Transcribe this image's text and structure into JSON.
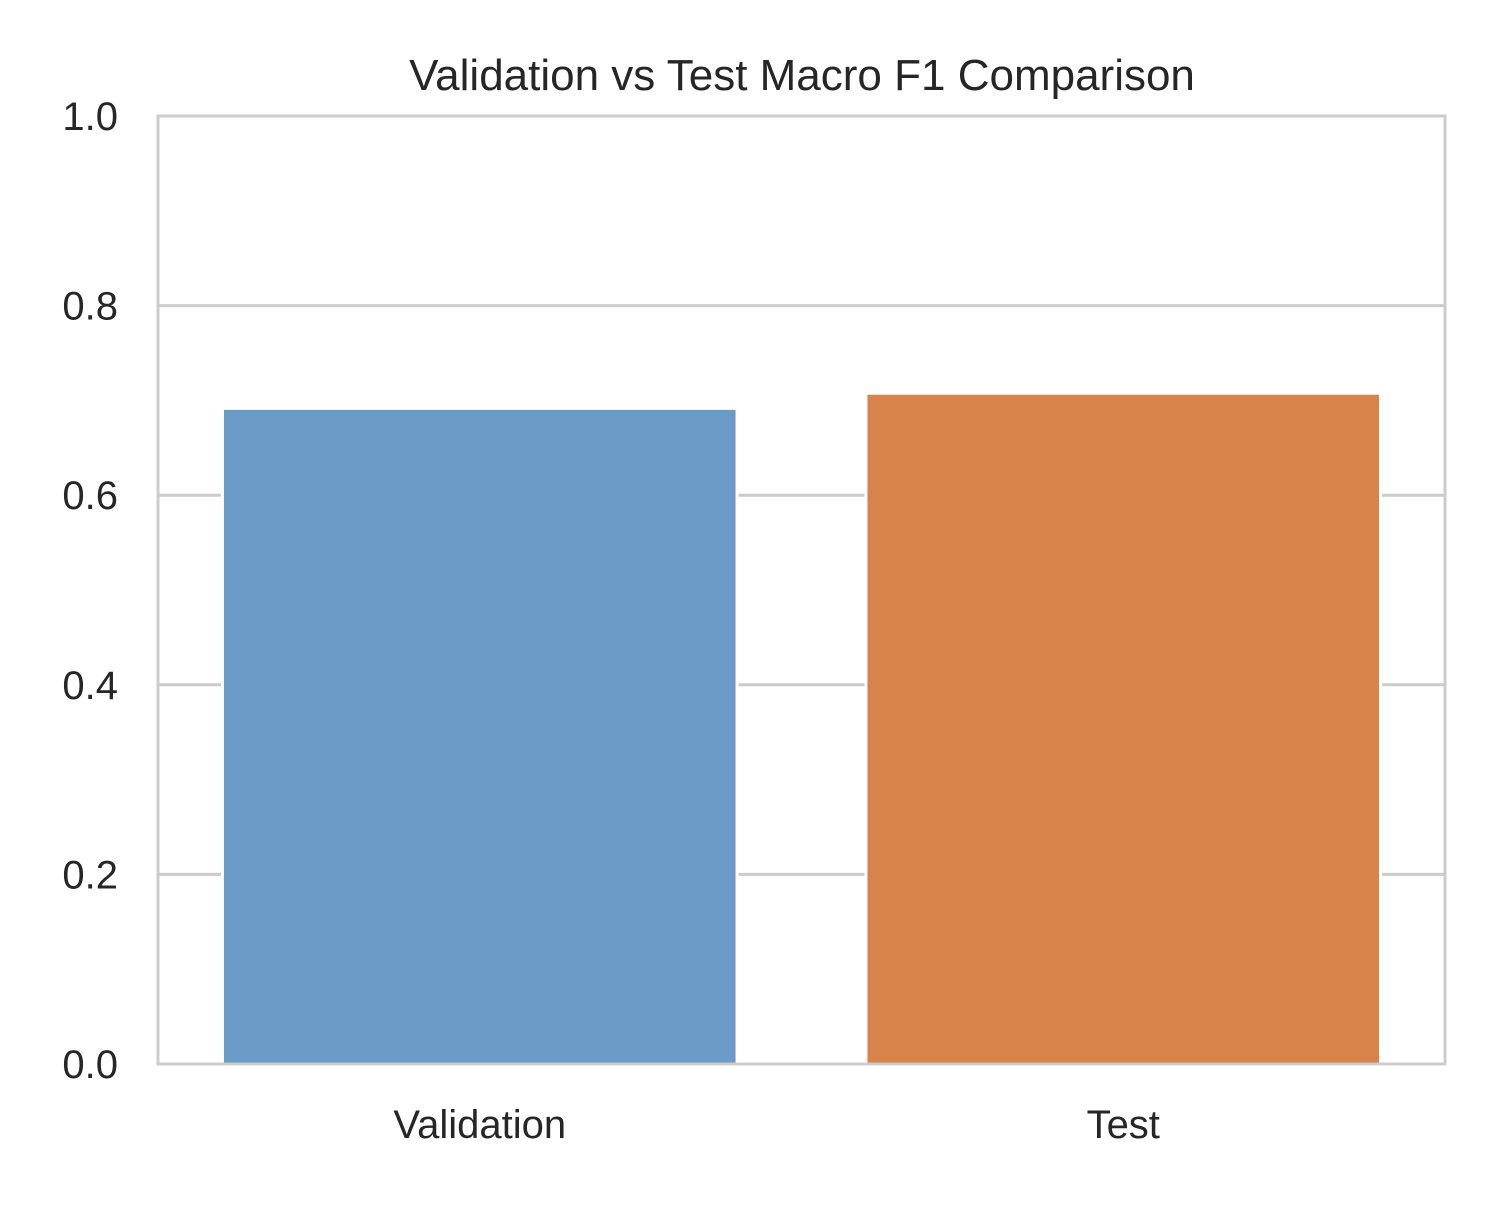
{
  "chart_data": {
    "type": "bar",
    "title": "Validation vs Test Macro F1 Comparison",
    "xlabel": "",
    "ylabel": "",
    "categories": [
      "Validation",
      "Test"
    ],
    "values": [
      0.69,
      0.706
    ],
    "ylim": [
      0,
      1.0
    ],
    "yticks": [
      "0.0",
      "0.2",
      "0.4",
      "0.6",
      "0.8",
      "1.0"
    ],
    "grid": true,
    "legend": "none",
    "colors": [
      "#6a9bc6",
      "#d7834a"
    ],
    "grid_color": "#cccccc",
    "frame_color": "#cccccc"
  }
}
